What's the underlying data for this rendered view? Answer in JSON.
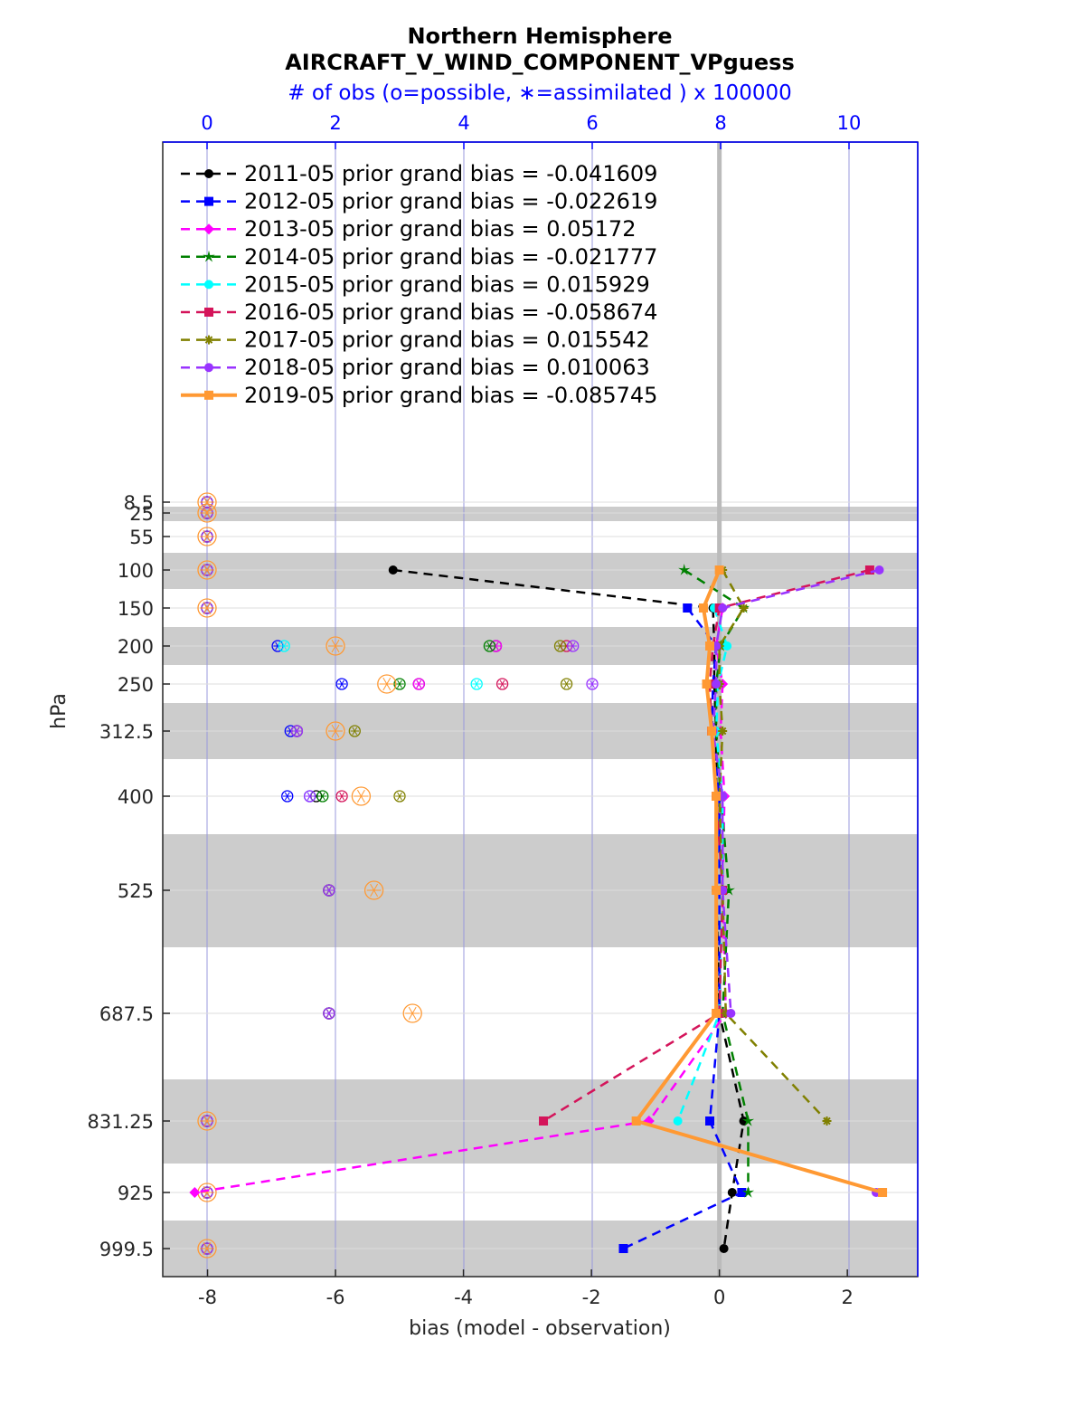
{
  "chart_data": {
    "type": "line",
    "title": "Northern Hemisphere",
    "subtitle": "AIRCRAFT_V_WIND_COMPONENT_VPguess",
    "top_axis_label": "# of obs (o=possible, ∗=assimilated ) x 100000",
    "xlabel": "bias (model - observation)",
    "ylabel": "hPa",
    "xlim": [
      -8.7,
      3.1
    ],
    "top_xlim": [
      0,
      11
    ],
    "y_scale": "reversed, irregular",
    "xticks": [
      "-8",
      "-6",
      "-4",
      "-2",
      "0",
      "2"
    ],
    "top_xticks": [
      "0",
      "2",
      "4",
      "6",
      "8",
      "10"
    ],
    "levels": [
      "8.5",
      "25",
      "55",
      "100",
      "150",
      "200",
      "250",
      "312.5",
      "400",
      "525",
      "687.5",
      "831.25",
      "925",
      "999.5"
    ],
    "grid": true,
    "legend_position": "top-left",
    "series": [
      {
        "name": "2011-05 prior grand bias = -0.041609",
        "color": "#000000",
        "marker": "circle",
        "dash": true,
        "values": [
          null,
          null,
          null,
          -5.1,
          -0.1,
          -0.08,
          -0.08,
          -0.05,
          -0.05,
          -0.05,
          0.0,
          0.38,
          0.2,
          0.07
        ]
      },
      {
        "name": "2012-05 prior grand bias = -0.022619",
        "color": "#0000ff",
        "marker": "square",
        "dash": true,
        "values": [
          null,
          null,
          null,
          null,
          -0.5,
          -0.05,
          -0.1,
          -0.12,
          0.0,
          0.0,
          0.0,
          -0.15,
          0.35,
          -1.5
        ]
      },
      {
        "name": "2013-05 prior grand bias = 0.05172",
        "color": "#ff00ff",
        "marker": "diamond",
        "dash": true,
        "values": [
          null,
          null,
          null,
          null,
          0.05,
          -0.05,
          0.05,
          0.02,
          0.08,
          0.05,
          0.1,
          -1.1,
          -8.2,
          null
        ]
      },
      {
        "name": "2014-05 prior grand bias = -0.021777",
        "color": "#008000",
        "marker": "star",
        "dash": true,
        "values": [
          null,
          null,
          null,
          -0.55,
          0.38,
          0.02,
          -0.05,
          -0.05,
          0.02,
          0.15,
          0.05,
          0.45,
          0.45,
          null
        ]
      },
      {
        "name": "2015-05 prior grand bias = 0.015929",
        "color": "#00ffff",
        "marker": "circle",
        "dash": true,
        "values": [
          null,
          null,
          null,
          null,
          -0.08,
          0.12,
          -0.02,
          -0.05,
          0.05,
          0.05,
          0.0,
          -0.65,
          null,
          null
        ]
      },
      {
        "name": "2016-05 prior grand bias = -0.058674",
        "color": "#d4145a",
        "marker": "square",
        "dash": true,
        "values": [
          null,
          null,
          null,
          2.35,
          0.0,
          -0.1,
          -0.15,
          -0.12,
          -0.05,
          0.05,
          0.0,
          -2.75,
          null,
          null
        ]
      },
      {
        "name": "2017-05 prior grand bias = 0.015542",
        "color": "#808000",
        "marker": "asterisk",
        "dash": true,
        "values": [
          null,
          null,
          null,
          0.05,
          0.38,
          0.0,
          0.0,
          0.05,
          0.0,
          0.05,
          0.1,
          1.68,
          null,
          null
        ]
      },
      {
        "name": "2018-05 prior grand bias = 0.010063",
        "color": "#9933ff",
        "marker": "circle",
        "dash": true,
        "values": [
          null,
          null,
          null,
          2.5,
          0.05,
          -0.05,
          -0.05,
          -0.1,
          0.05,
          0.05,
          0.18,
          null,
          2.45,
          null
        ]
      },
      {
        "name": "2019-05 prior grand bias = -0.085745",
        "color": "#ff9933",
        "marker": "square",
        "dash": false,
        "values": [
          null,
          null,
          null,
          0.0,
          -0.25,
          -0.15,
          -0.2,
          -0.12,
          -0.05,
          -0.05,
          -0.05,
          -1.3,
          2.55,
          null
        ]
      }
    ],
    "obs_counts_possible": {
      "2011-05": [
        0,
        0,
        0,
        0,
        0,
        4.5,
        3.3,
        1.4,
        1.7,
        1.9,
        1.9,
        0,
        0,
        0
      ],
      "2012-05": [
        0,
        0,
        0,
        0,
        0,
        1.1,
        2.1,
        1.3,
        1.25,
        1.9,
        1.9,
        0,
        0,
        0
      ],
      "2013-05": [
        0,
        0,
        0,
        0,
        0,
        4.5,
        3.3,
        1.4,
        1.6,
        1.9,
        1.9,
        0,
        0,
        0
      ],
      "2014-05": [
        0,
        0,
        0,
        0,
        0,
        4.4,
        3.0,
        1.4,
        1.8,
        1.9,
        1.9,
        0,
        0,
        0
      ],
      "2015-05": [
        0,
        0,
        0,
        0,
        0,
        1.2,
        4.2,
        1.4,
        1.6,
        1.9,
        1.9,
        0,
        0,
        0
      ],
      "2016-05": [
        0,
        0,
        0,
        0,
        0,
        5.6,
        4.6,
        1.4,
        2.1,
        1.9,
        1.9,
        0,
        0,
        0
      ],
      "2017-05": [
        0,
        0,
        0,
        0,
        0,
        5.5,
        5.6,
        2.3,
        3.0,
        1.9,
        1.9,
        0,
        0,
        0
      ],
      "2018-05": [
        0,
        0,
        0,
        0,
        0,
        5.7,
        6.0,
        1.4,
        1.6,
        1.9,
        1.9,
        0,
        0,
        0
      ],
      "2019-05": [
        0,
        0,
        0,
        0,
        0,
        2.0,
        2.8,
        2.0,
        2.4,
        2.6,
        3.2,
        0,
        0,
        0
      ]
    }
  }
}
